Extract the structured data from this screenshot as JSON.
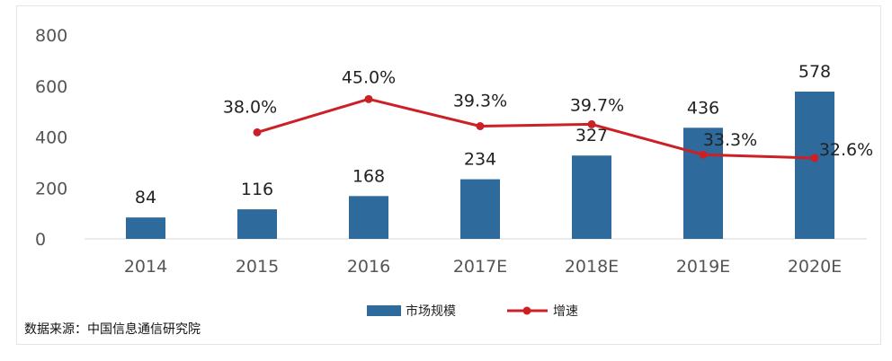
{
  "chart_data": {
    "type": "bar",
    "categories": [
      "2014",
      "2015",
      "2016",
      "2017E",
      "2018E",
      "2019E",
      "2020E"
    ],
    "series": [
      {
        "name": "市场规模",
        "kind": "bar",
        "color": "#2e6a9b",
        "values": [
          84,
          116,
          168,
          234,
          327,
          436,
          578
        ],
        "labels": [
          "84",
          "116",
          "168",
          "234",
          "327",
          "436",
          "578"
        ]
      },
      {
        "name": "增速",
        "kind": "line",
        "color": "#cc2027",
        "values": [
          null,
          38.0,
          45.0,
          39.3,
          39.7,
          33.3,
          32.6
        ],
        "labels": [
          "",
          "38.0%",
          "45.0%",
          "39.3%",
          "39.7%",
          "33.3%",
          "32.6%"
        ]
      }
    ],
    "y_ticks": [
      "0",
      "200",
      "400",
      "600",
      "800"
    ],
    "ylim": [
      0,
      800
    ],
    "grid": false,
    "legend": "bottom-center",
    "source": "数据来源：中国信息通信研究院"
  }
}
